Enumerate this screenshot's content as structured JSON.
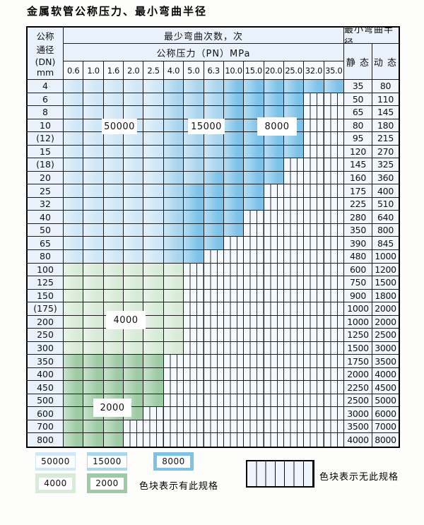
{
  "title": "金属软管公称压力、最小弯曲半径",
  "header": {
    "dn_lines": [
      "公称",
      "通径",
      "(DN)",
      "mm"
    ],
    "bend_cycles_label": "最少弯曲次数，次",
    "pressure_label": "公称压力（PN）MPa",
    "radius_label": "最小弯曲半径",
    "static_label": "静 态",
    "dynamic_label": "动 态",
    "pn_columns": [
      "0.6",
      "1.0",
      "1.6",
      "2.0",
      "2.5",
      "4.0",
      "5.0",
      "6.3",
      "10.0",
      "15.0",
      "20.0",
      "25.0",
      "32.0",
      "35.0"
    ]
  },
  "colors": {
    "50000": "#cfe7f6",
    "15000": "#a9d5ef",
    "8000": "#7dc3e9",
    "4000": "#d7ebd7",
    "2000": "#9dcba4",
    "hatch_bg": "#f4f9fd",
    "head_bg": "#e9f1fa"
  },
  "rows": [
    {
      "dn": "4",
      "static": "35",
      "dynamic": "80",
      "zones": [
        [
          "50000",
          0,
          4
        ],
        [
          "15000",
          5,
          7
        ],
        [
          "8000",
          8,
          13
        ]
      ]
    },
    {
      "dn": "6",
      "static": "50",
      "dynamic": "110",
      "zones": [
        [
          "50000",
          0,
          4
        ],
        [
          "15000",
          5,
          7
        ],
        [
          "8000",
          8,
          11
        ]
      ]
    },
    {
      "dn": "8",
      "static": "65",
      "dynamic": "145",
      "zones": [
        [
          "50000",
          0,
          4
        ],
        [
          "15000",
          5,
          7
        ],
        [
          "8000",
          8,
          11
        ]
      ]
    },
    {
      "dn": "10",
      "static": "80",
      "dynamic": "180",
      "zones": [
        [
          "50000",
          0,
          4
        ],
        [
          "15000",
          5,
          7
        ],
        [
          "8000",
          8,
          11
        ]
      ]
    },
    {
      "dn": "(12)",
      "static": "95",
      "dynamic": "215",
      "zones": [
        [
          "50000",
          0,
          4
        ],
        [
          "15000",
          5,
          7
        ],
        [
          "8000",
          8,
          11
        ]
      ]
    },
    {
      "dn": "15",
      "static": "120",
      "dynamic": "270",
      "zones": [
        [
          "50000",
          0,
          4
        ],
        [
          "15000",
          5,
          7
        ],
        [
          "8000",
          8,
          11
        ]
      ]
    },
    {
      "dn": "(18)",
      "static": "145",
      "dynamic": "325",
      "zones": [
        [
          "50000",
          0,
          4
        ],
        [
          "15000",
          5,
          7
        ],
        [
          "8000",
          8,
          10
        ]
      ]
    },
    {
      "dn": "20",
      "static": "160",
      "dynamic": "360",
      "zones": [
        [
          "50000",
          0,
          4
        ],
        [
          "15000",
          5,
          6
        ],
        [
          "8000",
          7,
          10
        ]
      ]
    },
    {
      "dn": "25",
      "static": "175",
      "dynamic": "400",
      "zones": [
        [
          "50000",
          0,
          4
        ],
        [
          "15000",
          5,
          5
        ],
        [
          "8000",
          6,
          9
        ]
      ]
    },
    {
      "dn": "32",
      "static": "225",
      "dynamic": "510",
      "zones": [
        [
          "50000",
          0,
          4
        ],
        [
          "15000",
          5,
          5
        ],
        [
          "8000",
          6,
          9
        ]
      ]
    },
    {
      "dn": "40",
      "static": "280",
      "dynamic": "640",
      "zones": [
        [
          "50000",
          0,
          4
        ],
        [
          "15000",
          5,
          5
        ],
        [
          "8000",
          6,
          8
        ]
      ]
    },
    {
      "dn": "50",
      "static": "350",
      "dynamic": "800",
      "zones": [
        [
          "50000",
          0,
          4
        ],
        [
          "15000",
          5,
          5
        ],
        [
          "8000",
          6,
          8
        ]
      ]
    },
    {
      "dn": "65",
      "static": "390",
      "dynamic": "845",
      "zones": [
        [
          "50000",
          0,
          4
        ],
        [
          "15000",
          5,
          5
        ],
        [
          "8000",
          6,
          7
        ]
      ]
    },
    {
      "dn": "80",
      "static": "480",
      "dynamic": "1000",
      "zones": [
        [
          "50000",
          0,
          4
        ],
        [
          "15000",
          5,
          5
        ],
        [
          "8000",
          6,
          6
        ]
      ]
    },
    {
      "dn": "100",
      "static": "600",
      "dynamic": "1200",
      "zones": [
        [
          "4000",
          0,
          5
        ]
      ]
    },
    {
      "dn": "125",
      "static": "750",
      "dynamic": "1500",
      "zones": [
        [
          "4000",
          0,
          5
        ]
      ]
    },
    {
      "dn": "150",
      "static": "900",
      "dynamic": "1800",
      "zones": [
        [
          "4000",
          0,
          5
        ]
      ]
    },
    {
      "dn": "(175)",
      "static": "1000",
      "dynamic": "2000",
      "zones": [
        [
          "4000",
          0,
          5
        ]
      ]
    },
    {
      "dn": "200",
      "static": "1000",
      "dynamic": "2000",
      "zones": [
        [
          "4000",
          0,
          5
        ]
      ]
    },
    {
      "dn": "250",
      "static": "1250",
      "dynamic": "2500",
      "zones": [
        [
          "4000",
          0,
          5
        ]
      ]
    },
    {
      "dn": "300",
      "static": "1500",
      "dynamic": "3000",
      "zones": [
        [
          "4000",
          0,
          5
        ]
      ]
    },
    {
      "dn": "350",
      "static": "1750",
      "dynamic": "3500",
      "zones": [
        [
          "2000",
          0,
          4
        ]
      ]
    },
    {
      "dn": "400",
      "static": "2000",
      "dynamic": "4000",
      "zones": [
        [
          "2000",
          0,
          4
        ]
      ]
    },
    {
      "dn": "450",
      "static": "2250",
      "dynamic": "4500",
      "zones": [
        [
          "2000",
          0,
          4
        ]
      ]
    },
    {
      "dn": "500",
      "static": "2500",
      "dynamic": "5000",
      "zones": [
        [
          "2000",
          0,
          4
        ]
      ]
    },
    {
      "dn": "600",
      "static": "3000",
      "dynamic": "6000",
      "zones": [
        [
          "2000",
          0,
          3
        ]
      ]
    },
    {
      "dn": "700",
      "static": "3500",
      "dynamic": "7000",
      "zones": [
        [
          "2000",
          0,
          2
        ]
      ]
    },
    {
      "dn": "800",
      "static": "4000",
      "dynamic": "8000",
      "zones": [
        [
          "2000",
          0,
          2
        ]
      ]
    }
  ],
  "region_labels": {
    "l50000": "50000",
    "l15000": "15000",
    "l8000": "8000",
    "l4000": "4000",
    "l2000": "2000"
  },
  "legend": {
    "items": [
      {
        "value": "50000",
        "zone": "50000"
      },
      {
        "value": "15000",
        "zone": "15000"
      },
      {
        "value": "8000",
        "zone": "8000"
      },
      {
        "value": "4000",
        "zone": "4000"
      },
      {
        "value": "2000",
        "zone": "2000"
      }
    ],
    "has_spec_text": "色块表示有此规格",
    "no_spec_text": "色块表示无此规格"
  }
}
